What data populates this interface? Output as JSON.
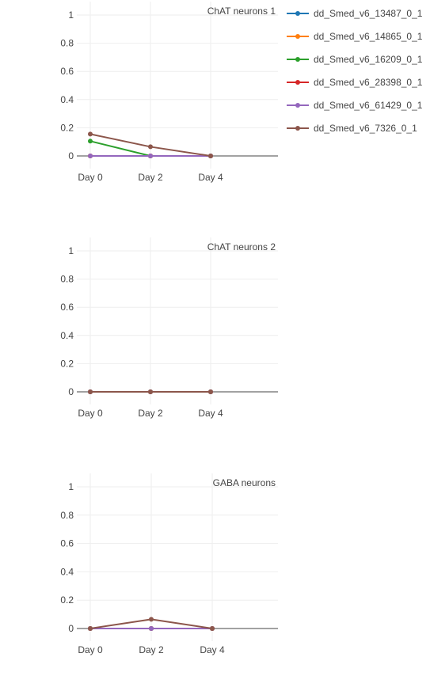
{
  "chart_data": {
    "type": "line",
    "x": [
      "Day 0",
      "Day 2",
      "Day 4"
    ],
    "ylim": [
      0,
      1
    ],
    "yticks": [
      "0",
      "0.2",
      "0.4",
      "0.6",
      "0.8",
      "1"
    ],
    "grid": true,
    "legend_placement": "top-right",
    "series": [
      {
        "name": "dd_Smed_v6_13487_0_1",
        "color": "#1f77b4"
      },
      {
        "name": "dd_Smed_v6_14865_0_1",
        "color": "#ff7f0e"
      },
      {
        "name": "dd_Smed_v6_16209_0_1",
        "color": "#2ca02c"
      },
      {
        "name": "dd_Smed_v6_28398_0_1",
        "color": "#d62728"
      },
      {
        "name": "dd_Smed_v6_61429_0_1",
        "color": "#9467bd"
      },
      {
        "name": "dd_Smed_v6_7326_0_1",
        "color": "#8c564b"
      }
    ],
    "panels": [
      {
        "title": "ChAT neurons 1",
        "values": [
          [
            0,
            0,
            0
          ],
          [
            0,
            0,
            0
          ],
          [
            0.105,
            0,
            0
          ],
          [
            0,
            0,
            0
          ],
          [
            0,
            0,
            0
          ],
          [
            0.155,
            0.065,
            0
          ]
        ]
      },
      {
        "title": "ChAT neurons 2",
        "values": [
          [
            0,
            0,
            0
          ],
          [
            0,
            0,
            0
          ],
          [
            0,
            0,
            0
          ],
          [
            0,
            0,
            0
          ],
          [
            0,
            0,
            0
          ],
          [
            0,
            0,
            0
          ]
        ]
      },
      {
        "title": "GABA neurons",
        "values": [
          [
            0,
            0,
            0
          ],
          [
            0,
            0,
            0
          ],
          [
            0,
            0,
            0
          ],
          [
            0,
            0,
            0
          ],
          [
            0,
            0,
            0
          ],
          [
            0,
            0.065,
            0
          ]
        ]
      }
    ]
  }
}
